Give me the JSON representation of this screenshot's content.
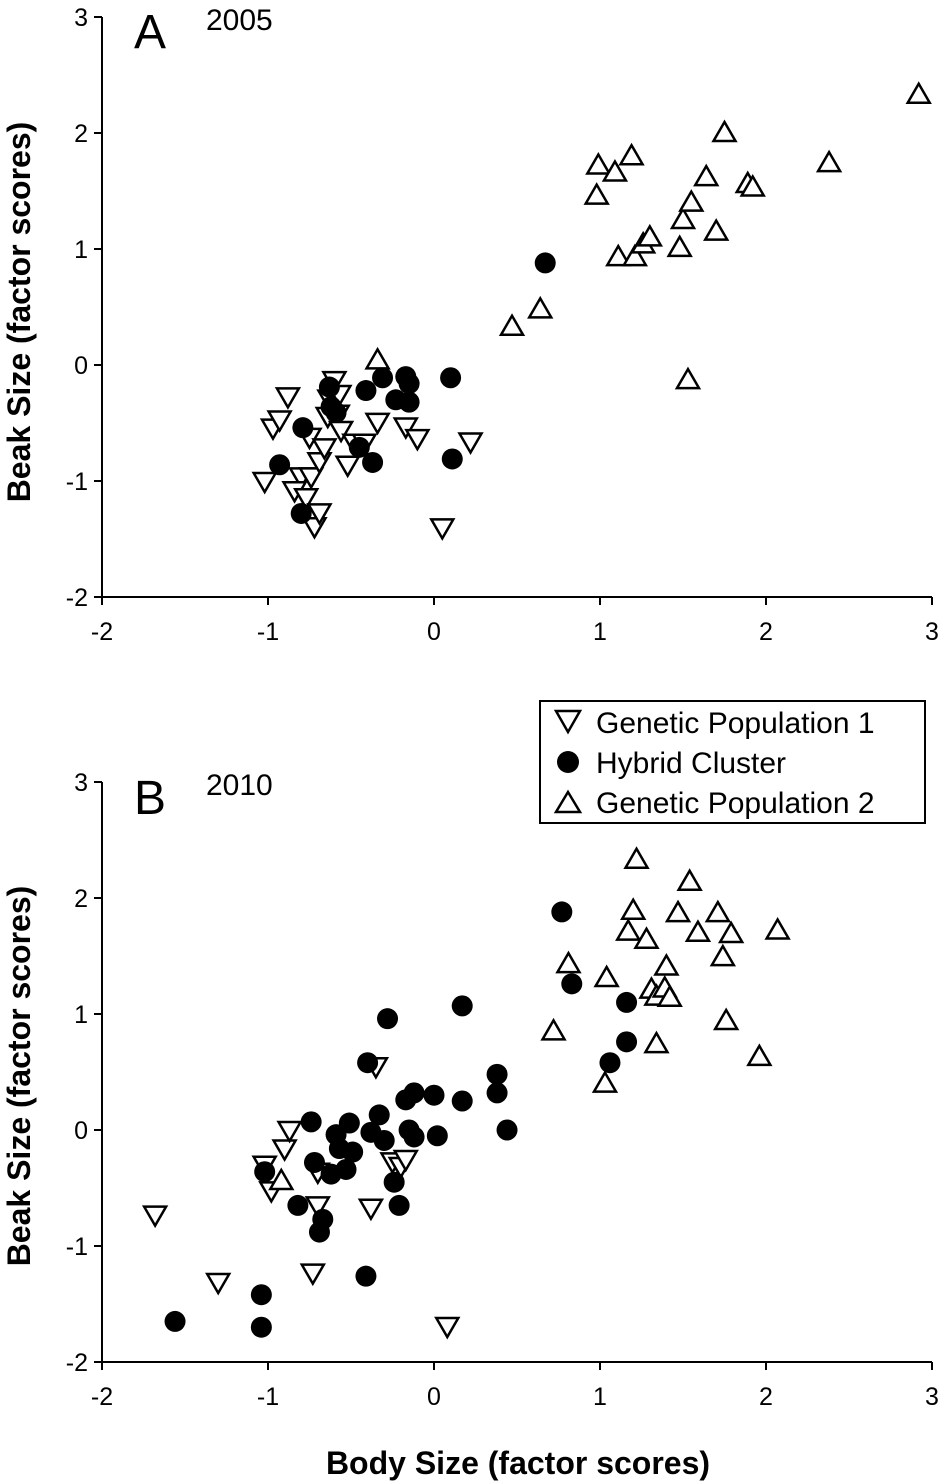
{
  "chart_data": [
    {
      "type": "scatter",
      "panel_label": "A",
      "year": "2005",
      "xlim": [
        -2,
        3
      ],
      "ylim": [
        -2,
        3
      ],
      "x_ticks": [
        -2,
        -1,
        0,
        1,
        2,
        3
      ],
      "y_ticks": [
        -2,
        -1,
        0,
        1,
        2,
        3
      ],
      "ylabel": "Beak Size (factor scores)",
      "xlabel": "",
      "series": [
        {
          "name": "Genetic Population 1",
          "marker": "triangle-down",
          "points": [
            [
              -1.02,
              -1.0
            ],
            [
              -0.97,
              -0.54
            ],
            [
              -0.93,
              -0.47
            ],
            [
              -0.88,
              -0.27
            ],
            [
              -0.8,
              -0.96
            ],
            [
              -0.84,
              -1.08
            ],
            [
              -0.77,
              -1.14
            ],
            [
              -0.75,
              -0.62
            ],
            [
              -0.74,
              -0.96
            ],
            [
              -0.72,
              -1.39
            ],
            [
              -0.69,
              -1.27
            ],
            [
              -0.69,
              -0.83
            ],
            [
              -0.66,
              -0.71
            ],
            [
              -0.64,
              -0.44
            ],
            [
              -0.63,
              -0.29
            ],
            [
              -0.6,
              -0.13
            ],
            [
              -0.58,
              -0.42
            ],
            [
              -0.57,
              -0.25
            ],
            [
              -0.56,
              -0.56
            ],
            [
              -0.52,
              -0.86
            ],
            [
              -0.48,
              -0.67
            ],
            [
              -0.42,
              -0.67
            ],
            [
              -0.34,
              -0.49
            ],
            [
              -0.17,
              -0.53
            ],
            [
              -0.1,
              -0.63
            ],
            [
              0.05,
              -1.4
            ],
            [
              0.22,
              -0.66
            ]
          ]
        },
        {
          "name": "Hybrid Cluster",
          "marker": "circle",
          "points": [
            [
              -0.93,
              -0.86
            ],
            [
              -0.8,
              -1.28
            ],
            [
              -0.79,
              -0.54
            ],
            [
              -0.63,
              -0.19
            ],
            [
              -0.62,
              -0.36
            ],
            [
              -0.59,
              -0.41
            ],
            [
              -0.45,
              -0.71
            ],
            [
              -0.41,
              -0.22
            ],
            [
              -0.37,
              -0.84
            ],
            [
              -0.31,
              -0.11
            ],
            [
              -0.23,
              -0.3
            ],
            [
              -0.17,
              -0.1
            ],
            [
              -0.15,
              -0.16
            ],
            [
              -0.15,
              -0.32
            ],
            [
              0.1,
              -0.11
            ],
            [
              0.11,
              -0.81
            ],
            [
              0.67,
              0.88
            ]
          ]
        },
        {
          "name": "Genetic Population 2",
          "marker": "triangle-up",
          "points": [
            [
              -0.34,
              0.04
            ],
            [
              0.47,
              0.33
            ],
            [
              0.64,
              0.48
            ],
            [
              0.98,
              1.46
            ],
            [
              0.99,
              1.72
            ],
            [
              1.09,
              1.66
            ],
            [
              1.11,
              0.93
            ],
            [
              1.19,
              1.8
            ],
            [
              1.21,
              0.93
            ],
            [
              1.26,
              1.04
            ],
            [
              1.3,
              1.1
            ],
            [
              1.48,
              1.01
            ],
            [
              1.5,
              1.25
            ],
            [
              1.53,
              -0.13
            ],
            [
              1.55,
              1.4
            ],
            [
              1.64,
              1.62
            ],
            [
              1.7,
              1.15
            ],
            [
              1.75,
              2.0
            ],
            [
              1.89,
              1.56
            ],
            [
              1.92,
              1.53
            ],
            [
              2.38,
              1.74
            ],
            [
              2.92,
              2.33
            ]
          ]
        }
      ]
    },
    {
      "type": "scatter",
      "panel_label": "B",
      "year": "2010",
      "xlim": [
        -2,
        3
      ],
      "ylim": [
        -2,
        3
      ],
      "x_ticks": [
        -2,
        -1,
        0,
        1,
        2,
        3
      ],
      "y_ticks": [
        -2,
        -1,
        0,
        1,
        2,
        3
      ],
      "ylabel": "Beak Size (factor scores)",
      "xlabel": "Body Size (factor scores)",
      "series": [
        {
          "name": "Genetic Population 1",
          "marker": "triangle-down",
          "points": [
            [
              -1.68,
              -0.73
            ],
            [
              -1.3,
              -1.31
            ],
            [
              -1.02,
              -0.3
            ],
            [
              -0.98,
              -0.52
            ],
            [
              -0.9,
              -0.16
            ],
            [
              -0.87,
              0.0
            ],
            [
              -0.73,
              -1.23
            ],
            [
              -0.7,
              -0.65
            ],
            [
              -0.7,
              -0.36
            ],
            [
              -0.38,
              -0.67
            ],
            [
              -0.35,
              0.55
            ],
            [
              -0.25,
              -0.27
            ],
            [
              -0.2,
              -0.31
            ],
            [
              -0.17,
              -0.25
            ],
            [
              0.08,
              -1.69
            ]
          ]
        },
        {
          "name": "Hybrid Cluster",
          "marker": "circle",
          "points": [
            [
              -1.56,
              -1.65
            ],
            [
              -1.04,
              -1.42
            ],
            [
              -1.04,
              -1.7
            ],
            [
              -1.02,
              -0.36
            ],
            [
              -0.82,
              -0.65
            ],
            [
              -0.74,
              0.07
            ],
            [
              -0.72,
              -0.28
            ],
            [
              -0.69,
              -0.88
            ],
            [
              -0.67,
              -0.77
            ],
            [
              -0.62,
              -0.38
            ],
            [
              -0.59,
              -0.04
            ],
            [
              -0.57,
              -0.16
            ],
            [
              -0.53,
              -0.34
            ],
            [
              -0.51,
              0.06
            ],
            [
              -0.49,
              -0.19
            ],
            [
              -0.41,
              -1.26
            ],
            [
              -0.4,
              0.58
            ],
            [
              -0.38,
              -0.02
            ],
            [
              -0.33,
              0.13
            ],
            [
              -0.3,
              -0.09
            ],
            [
              -0.28,
              0.96
            ],
            [
              -0.24,
              -0.45
            ],
            [
              -0.21,
              -0.65
            ],
            [
              -0.17,
              0.26
            ],
            [
              -0.15,
              0.0
            ],
            [
              -0.12,
              0.32
            ],
            [
              -0.12,
              -0.06
            ],
            [
              0.0,
              0.3
            ],
            [
              0.02,
              -0.05
            ],
            [
              0.17,
              1.07
            ],
            [
              0.17,
              0.25
            ],
            [
              0.38,
              0.48
            ],
            [
              0.38,
              0.32
            ],
            [
              0.44,
              0.0
            ],
            [
              0.77,
              1.88
            ],
            [
              0.83,
              1.26
            ],
            [
              1.06,
              0.58
            ],
            [
              1.16,
              1.1
            ],
            [
              1.16,
              0.76
            ]
          ]
        },
        {
          "name": "Genetic Population 2",
          "marker": "triangle-up",
          "points": [
            [
              -0.92,
              -0.44
            ],
            [
              0.72,
              0.85
            ],
            [
              0.81,
              1.43
            ],
            [
              1.03,
              0.4
            ],
            [
              1.04,
              1.31
            ],
            [
              1.17,
              1.71
            ],
            [
              1.2,
              1.89
            ],
            [
              1.22,
              2.33
            ],
            [
              1.28,
              1.64
            ],
            [
              1.31,
              1.21
            ],
            [
              1.34,
              1.15
            ],
            [
              1.34,
              0.74
            ],
            [
              1.39,
              1.22
            ],
            [
              1.4,
              1.41
            ],
            [
              1.42,
              1.14
            ],
            [
              1.47,
              1.87
            ],
            [
              1.54,
              2.14
            ],
            [
              1.59,
              1.7
            ],
            [
              1.71,
              1.87
            ],
            [
              1.74,
              1.49
            ],
            [
              1.76,
              0.94
            ],
            [
              1.79,
              1.69
            ],
            [
              1.96,
              0.63
            ],
            [
              2.07,
              1.72
            ]
          ]
        }
      ]
    }
  ],
  "legend": {
    "position": "top-right of panel B",
    "items": [
      {
        "label": "Genetic Population 1",
        "marker": "triangle-down"
      },
      {
        "label": "Hybrid Cluster",
        "marker": "circle"
      },
      {
        "label": "Genetic Population 2",
        "marker": "triangle-up"
      }
    ]
  },
  "colors": {
    "marker_stroke": "#000000",
    "marker_fill_open": "#ffffff",
    "marker_fill_solid": "#000000"
  }
}
